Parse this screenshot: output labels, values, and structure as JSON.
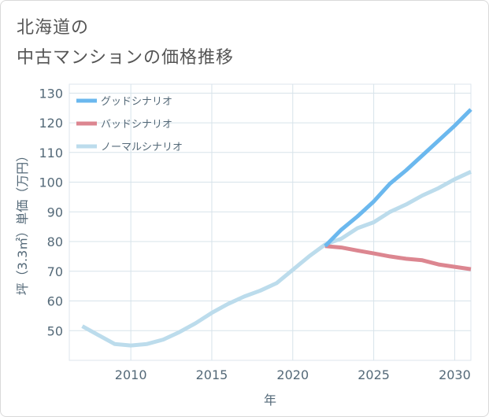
{
  "title_line1": "北海道の",
  "title_line2": "中古マンションの価格推移",
  "chart_data": {
    "type": "line",
    "xlabel": "年",
    "ylabel": "坪（3.3㎡）単価（万円）",
    "xlim": [
      2006.2,
      2031
    ],
    "ylim": [
      40,
      133
    ],
    "x_ticks": [
      2010,
      2015,
      2020,
      2025,
      2030
    ],
    "x_tick_labels": [
      "2010",
      "2015",
      "2020",
      "2025",
      "2030"
    ],
    "y_ticks": [
      50,
      60,
      70,
      80,
      90,
      100,
      110,
      120,
      130
    ],
    "y_tick_labels": [
      "50",
      "60",
      "70",
      "80",
      "90",
      "100",
      "110",
      "120",
      "130"
    ],
    "grid": true,
    "legend_position": "top-left",
    "series": [
      {
        "name": "グッドシナリオ",
        "color": "#6bb8ee",
        "x": [
          2022,
          2023,
          2024,
          2025,
          2026,
          2027,
          2028,
          2029,
          2030,
          2031
        ],
        "values": [
          78.5,
          84.0,
          88.5,
          93.5,
          99.5,
          104.0,
          109.0,
          114.0,
          119.0,
          124.5
        ]
      },
      {
        "name": "バッドシナリオ",
        "color": "#dc8690",
        "x": [
          2022,
          2023,
          2024,
          2025,
          2026,
          2027,
          2028,
          2029,
          2030,
          2031
        ],
        "values": [
          78.5,
          78.0,
          77.0,
          76.0,
          75.0,
          74.2,
          73.7,
          72.3,
          71.5,
          70.7
        ]
      },
      {
        "name": "ノーマルシナリオ",
        "color": "#bcdcec",
        "x": [
          2007,
          2008,
          2009,
          2010,
          2011,
          2012,
          2013,
          2014,
          2015,
          2016,
          2017,
          2018,
          2019,
          2020,
          2021,
          2022,
          2023,
          2024,
          2025,
          2026,
          2027,
          2028,
          2029,
          2030,
          2031
        ],
        "values": [
          51.5,
          48.5,
          45.5,
          45.0,
          45.5,
          47.0,
          49.5,
          52.5,
          56.0,
          59.0,
          61.5,
          63.5,
          66.0,
          70.5,
          75.0,
          79.0,
          81.0,
          84.5,
          86.5,
          90.0,
          92.5,
          95.5,
          98.0,
          101.0,
          103.5
        ]
      }
    ]
  }
}
